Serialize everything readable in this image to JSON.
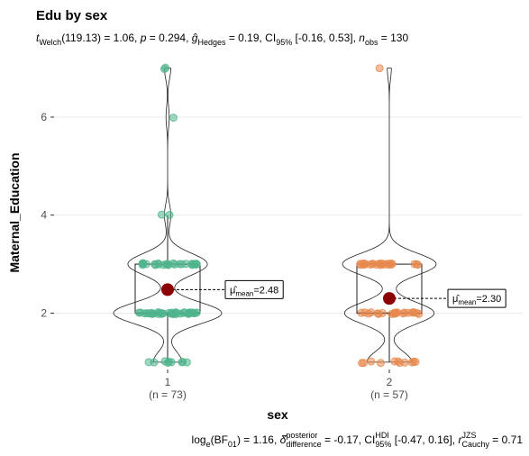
{
  "chart_data": {
    "type": "violin",
    "title": "Edu by sex",
    "subtitle": [
      {
        "t": "t",
        "s": "i"
      },
      {
        "t": "Welch",
        "s": "sub"
      },
      {
        "t": "(119.13) = 1.06, "
      },
      {
        "t": "p",
        "s": "i"
      },
      {
        "t": " = 0.294, "
      },
      {
        "t": "ĝ",
        "s": "i"
      },
      {
        "t": "Hedges",
        "s": "sub"
      },
      {
        "t": " = 0.19, CI"
      },
      {
        "t": "95%",
        "s": "sub"
      },
      {
        "t": " [-0.16, 0.53], "
      },
      {
        "t": "n",
        "s": "i"
      },
      {
        "t": "obs",
        "s": "sub"
      },
      {
        "t": " = 130"
      }
    ],
    "caption": [
      {
        "t": "log"
      },
      {
        "t": "e",
        "s": "sub"
      },
      {
        "t": "(BF"
      },
      {
        "t": "01",
        "s": "sub"
      },
      {
        "t": ") = 1.16, "
      },
      {
        "t": "δ̂",
        "s": "i"
      },
      {
        "t": "posterior",
        "s": "sup"
      },
      {
        "t": "difference",
        "s": "sub"
      },
      {
        "t": " = -0.17, CI"
      },
      {
        "t": "HDI",
        "s": "sup"
      },
      {
        "t": "95%",
        "s": "sub"
      },
      {
        "t": " [-0.47, 0.16], "
      },
      {
        "t": "r",
        "s": "i"
      },
      {
        "t": "JZS",
        "s": "sup"
      },
      {
        "t": "Cauchy",
        "s": "sub"
      },
      {
        "t": " = 0.71"
      }
    ],
    "x_label": "sex",
    "y_label": "Maternal_Education",
    "categories": [
      "1",
      "2"
    ],
    "n_labels": [
      "(n = 73)",
      "(n = 57)"
    ],
    "ylim": [
      0.85,
      7.25
    ],
    "yticks": [
      2,
      4,
      6
    ],
    "grid": true,
    "series": [
      {
        "name": "1",
        "color": "#4fb58c",
        "values": [
          1,
          1,
          1,
          1,
          1,
          1,
          1,
          1,
          1,
          2,
          2,
          2,
          2,
          2,
          2,
          2,
          2,
          2,
          2,
          2,
          2,
          2,
          2,
          2,
          2,
          2,
          2,
          2,
          2,
          2,
          2,
          2,
          2,
          2,
          2,
          2,
          2,
          2,
          2,
          2,
          2,
          2,
          2,
          3,
          3,
          3,
          3,
          3,
          3,
          3,
          3,
          3,
          3,
          3,
          3,
          3,
          3,
          3,
          3,
          3,
          3,
          3,
          3,
          3,
          3,
          3,
          3,
          3,
          4,
          4,
          6,
          7,
          7
        ],
        "box": {
          "lower": 1,
          "q1": 2,
          "median": 2,
          "q3": 3,
          "upper": 4
        },
        "mean": 2.48,
        "mean_label": "2.48"
      },
      {
        "name": "2",
        "color": "#e8894e",
        "values": [
          1,
          1,
          1,
          1,
          1,
          1,
          1,
          1,
          1,
          1,
          1,
          2,
          2,
          2,
          2,
          2,
          2,
          2,
          2,
          2,
          2,
          2,
          2,
          2,
          2,
          2,
          2,
          2,
          2,
          2,
          2,
          2,
          2,
          3,
          3,
          3,
          3,
          3,
          3,
          3,
          3,
          3,
          3,
          3,
          3,
          3,
          3,
          3,
          3,
          3,
          3,
          3,
          3,
          3,
          3,
          3,
          7
        ],
        "box": {
          "lower": 1,
          "q1": 2,
          "median": 2,
          "q3": 3,
          "upper": 3
        },
        "mean": 2.3,
        "mean_label": "2.30"
      }
    ],
    "mean_color": "#8b0000",
    "mean_label_prefix": [
      {
        "t": "μ̂"
      },
      {
        "t": "mean",
        "s": "sub"
      },
      {
        "t": "="
      }
    ]
  }
}
